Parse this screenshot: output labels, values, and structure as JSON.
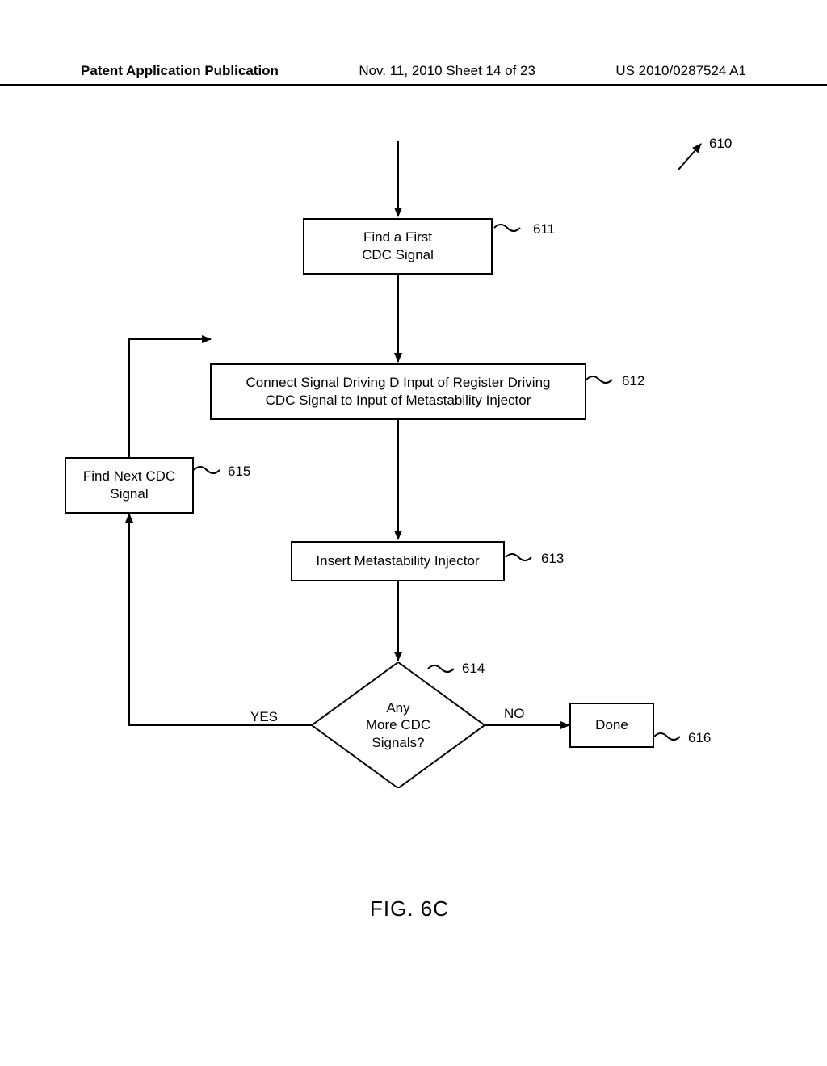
{
  "header": {
    "left": "Patent Application Publication",
    "mid": "Nov. 11, 2010   Sheet 14 of 23",
    "right": "US 2010/0287524 A1"
  },
  "figure": {
    "caption": "FIG. 6C",
    "root_ref": "610",
    "colors": {
      "stroke": "#000000",
      "fill": "#ffffff",
      "text": "#000000",
      "background": "#ffffff"
    },
    "line_width": 2,
    "font_size_box": 17,
    "font_size_label": 17,
    "font_size_caption": 26,
    "boxes": {
      "b611": {
        "text": "Find a First\nCDC Signal",
        "ref": "611"
      },
      "b612": {
        "text": "Connect Signal Driving D Input of Register Driving\nCDC Signal to Input of Metastability Injector",
        "ref": "612"
      },
      "b613": {
        "text": "Insert Metastability Injector",
        "ref": "613"
      },
      "b615": {
        "text": "Find Next CDC\nSignal",
        "ref": "615"
      },
      "b616": {
        "text": "Done",
        "ref": "616"
      }
    },
    "decision": {
      "d614": {
        "text": "Any\nMore CDC\nSignals?",
        "ref": "614",
        "yes_label": "YES",
        "no_label": "NO"
      }
    }
  }
}
